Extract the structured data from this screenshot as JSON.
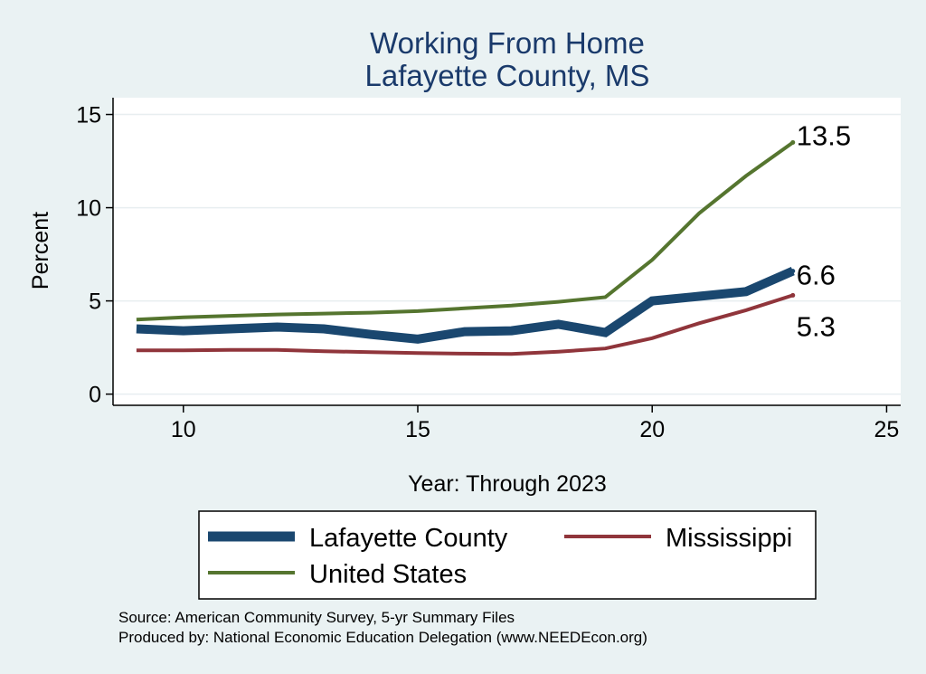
{
  "chart_data": {
    "type": "line",
    "title": "Working From Home",
    "subtitle": "Lafayette County, MS",
    "xlabel": "Year: Through 2023",
    "ylabel": "Percent",
    "xlim": [
      8.5,
      25.3
    ],
    "ylim": [
      -0.6,
      15.9
    ],
    "xticks": [
      10,
      15,
      20,
      25
    ],
    "yticks": [
      0,
      5,
      10,
      15
    ],
    "grid": true,
    "legend_position": "bottom",
    "x": [
      9,
      10,
      11,
      12,
      13,
      14,
      15,
      16,
      17,
      18,
      19,
      20,
      21,
      22,
      23
    ],
    "series": [
      {
        "name": "Lafayette County",
        "color": "#1a476f",
        "values": [
          3.5,
          3.4,
          3.5,
          3.6,
          3.5,
          3.2,
          2.95,
          3.35,
          3.4,
          3.75,
          3.3,
          5.0,
          5.25,
          5.5,
          6.6
        ],
        "end_label": "6.6"
      },
      {
        "name": "Mississippi",
        "color": "#90353b",
        "values": [
          2.35,
          2.35,
          2.37,
          2.37,
          2.3,
          2.25,
          2.2,
          2.17,
          2.15,
          2.28,
          2.45,
          3.0,
          3.8,
          4.5,
          5.3
        ],
        "end_label": "5.3"
      },
      {
        "name": "United States",
        "color": "#55752f",
        "values": [
          4.0,
          4.12,
          4.2,
          4.27,
          4.32,
          4.37,
          4.45,
          4.6,
          4.75,
          4.95,
          5.2,
          7.2,
          9.7,
          11.7,
          13.5
        ],
        "end_label": "13.5"
      }
    ]
  },
  "notes": {
    "source": "Source: American Community Survey, 5-yr Summary Files",
    "produced_by": "Produced by: National Economic Education Delegation (www.NEEDEcon.org)"
  }
}
